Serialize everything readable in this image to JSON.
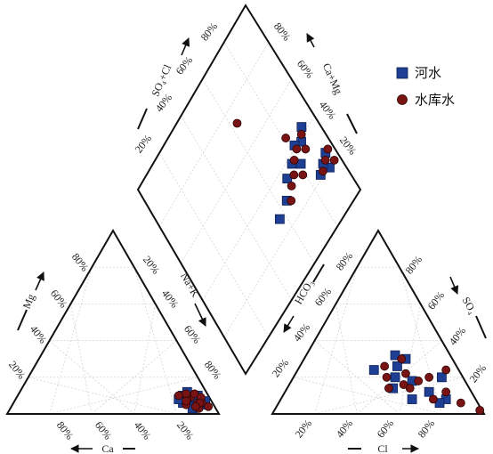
{
  "chart_data": {
    "type": "scatter",
    "subtype": "piper-trilinear",
    "title": "",
    "legend": {
      "placement": "top-right",
      "entries": [
        {
          "key": "river",
          "label": "河水",
          "marker": "square",
          "color": "#1f3f94"
        },
        {
          "key": "reservoir",
          "label": "水库水",
          "marker": "circle",
          "color": "#7a1414"
        }
      ]
    },
    "axes": {
      "cation_ca": {
        "label": "Ca",
        "ticks": [
          "80%",
          "60%",
          "40%",
          "20%"
        ]
      },
      "cation_mg": {
        "label": "Mg",
        "ticks": [
          "20%",
          "40%",
          "60%",
          "80%"
        ]
      },
      "cation_nak": {
        "label": "Na+K",
        "ticks": [
          "20%",
          "40%",
          "60%",
          "80%"
        ]
      },
      "anion_cl": {
        "label": "Cl",
        "ticks": [
          "20%",
          "40%",
          "60%",
          "80%"
        ]
      },
      "anion_so4": {
        "label": "SO₄",
        "ticks": [
          "20%",
          "40%",
          "60%",
          "80%"
        ]
      },
      "anion_hco3": {
        "label": "HCO₃",
        "ticks": [
          "20%",
          "40%",
          "60%",
          "80%"
        ]
      },
      "diamond_so4cl": {
        "label": "SO₄+Cl",
        "ticks": [
          "20%",
          "40%",
          "60%",
          "80%"
        ]
      },
      "diamond_camg": {
        "label": "Ca+Mg",
        "ticks": [
          "20%",
          "40%",
          "60%",
          "80%"
        ]
      }
    },
    "grid": true,
    "series": [
      {
        "key": "river",
        "cations": [
          [
            6,
            8
          ],
          [
            10,
            7
          ],
          [
            4,
            5
          ],
          [
            12,
            10
          ],
          [
            8,
            4
          ],
          [
            14,
            6
          ],
          [
            5,
            10
          ],
          [
            9,
            12
          ],
          [
            3,
            7
          ],
          [
            11,
            3
          ],
          [
            7,
            9
          ],
          [
            15,
            8
          ]
        ],
        "anions": [
          [
            25,
            18
          ],
          [
            32,
            20
          ],
          [
            36,
            14
          ],
          [
            20,
            12
          ],
          [
            14,
            8
          ],
          [
            10,
            20
          ],
          [
            28,
            26
          ],
          [
            40,
            24
          ],
          [
            22,
            30
          ],
          [
            30,
            8
          ],
          [
            18,
            6
          ],
          [
            26,
            32
          ]
        ],
        "diamond": [
          [
            20,
            8
          ],
          [
            24,
            10
          ],
          [
            22,
            14
          ],
          [
            26,
            6
          ],
          [
            40,
            14
          ],
          [
            44,
            10
          ],
          [
            38,
            24
          ],
          [
            36,
            30
          ],
          [
            30,
            36
          ],
          [
            34,
            20
          ],
          [
            28,
            44
          ],
          [
            42,
            18
          ]
        ]
      },
      {
        "key": "reservoir",
        "cations": [
          [
            7,
            6
          ],
          [
            9,
            9
          ],
          [
            5,
            6
          ],
          [
            11,
            8
          ],
          [
            13,
            5
          ],
          [
            6,
            11
          ],
          [
            8,
            3
          ],
          [
            4,
            9
          ],
          [
            10,
            11
          ],
          [
            12,
            7
          ],
          [
            3,
            4
          ],
          [
            14,
            10
          ],
          [
            6,
            6
          ],
          [
            9,
            4
          ]
        ],
        "anions": [
          [
            22,
            18
          ],
          [
            26,
            22
          ],
          [
            30,
            16
          ],
          [
            16,
            20
          ],
          [
            12,
            12
          ],
          [
            34,
            26
          ],
          [
            24,
            30
          ],
          [
            20,
            8
          ],
          [
            28,
            14
          ],
          [
            8,
            6
          ],
          [
            6,
            24
          ],
          [
            36,
            20
          ],
          [
            38,
            14
          ],
          [
            1,
            2
          ]
        ],
        "diamond": [
          [
            20,
            4
          ],
          [
            24,
            8
          ],
          [
            22,
            12
          ],
          [
            26,
            4
          ],
          [
            36,
            14
          ],
          [
            40,
            18
          ],
          [
            38,
            22
          ],
          [
            34,
            26
          ],
          [
            30,
            22
          ],
          [
            42,
            12
          ],
          [
            32,
            30
          ],
          [
            28,
            34
          ],
          [
            48,
            20
          ],
          [
            74,
            38
          ]
        ]
      }
    ]
  }
}
